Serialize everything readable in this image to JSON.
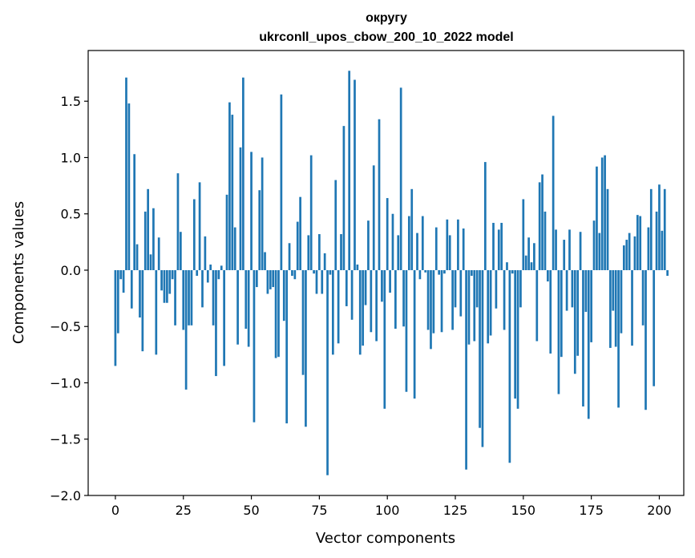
{
  "chart_data": {
    "type": "bar",
    "title_line1": "округу",
    "title_line2": "ukrconll_upos_cbow_200_10_2022 model",
    "xlabel": "Vector components",
    "ylabel": "Components values",
    "xlim": [
      -10,
      209
    ],
    "ylim": [
      -2.0,
      1.95
    ],
    "x_ticks": [
      0,
      25,
      50,
      75,
      100,
      125,
      150,
      175,
      200
    ],
    "x_tick_labels": [
      "0",
      "25",
      "50",
      "75",
      "100",
      "125",
      "150",
      "175",
      "200"
    ],
    "y_ticks": [
      -2.0,
      -1.5,
      -1.0,
      -0.5,
      0.0,
      0.5,
      1.0,
      1.5
    ],
    "y_tick_labels": [
      "−2.0",
      "−1.5",
      "−1.0",
      "−0.5",
      "0.0",
      "0.5",
      "1.0",
      "1.5"
    ],
    "bar_color": "#1f77b4",
    "grid": false,
    "values": [
      -0.85,
      -0.56,
      -0.08,
      -0.2,
      1.71,
      1.48,
      -0.34,
      1.03,
      0.23,
      -0.42,
      -0.72,
      0.52,
      0.72,
      0.14,
      0.55,
      -0.75,
      0.29,
      -0.18,
      -0.29,
      -0.29,
      -0.21,
      -0.08,
      -0.49,
      0.86,
      0.34,
      -0.53,
      -1.06,
      -0.49,
      -0.49,
      0.63,
      -0.05,
      0.78,
      -0.33,
      0.3,
      -0.11,
      0.05,
      -0.49,
      -0.94,
      -0.08,
      0.04,
      -0.85,
      0.67,
      1.49,
      1.38,
      0.38,
      -0.66,
      1.09,
      1.71,
      -0.52,
      -0.68,
      1.05,
      -1.35,
      -0.15,
      0.71,
      1.0,
      0.16,
      -0.21,
      -0.17,
      -0.15,
      -0.78,
      -0.77,
      1.56,
      -0.45,
      -1.36,
      0.24,
      -0.05,
      -0.08,
      0.43,
      0.65,
      -0.93,
      -1.39,
      0.31,
      1.02,
      -0.03,
      -0.21,
      0.32,
      -0.21,
      0.15,
      -1.82,
      -0.04,
      -0.75,
      0.8,
      -0.65,
      0.32,
      1.28,
      -0.32,
      1.77,
      -0.44,
      1.69,
      0.05,
      -0.75,
      -0.67,
      -0.31,
      0.44,
      -0.55,
      0.93,
      -0.63,
      1.34,
      -0.28,
      -1.23,
      0.64,
      -0.2,
      0.5,
      -0.52,
      0.31,
      1.62,
      -0.5,
      -1.08,
      0.48,
      0.72,
      -1.14,
      0.33,
      -0.08,
      0.48,
      -0.02,
      -0.53,
      -0.7,
      -0.56,
      0.38,
      -0.04,
      -0.55,
      -0.03,
      0.45,
      0.31,
      -0.53,
      -0.33,
      0.45,
      -0.41,
      0.37,
      -1.77,
      -0.66,
      -0.05,
      -0.63,
      -0.33,
      -1.4,
      -1.57,
      0.96,
      -0.65,
      -0.58,
      0.42,
      -0.34,
      0.36,
      0.42,
      -0.53,
      0.07,
      -1.71,
      -0.03,
      -1.14,
      -1.23,
      -0.33,
      0.63,
      0.13,
      0.29,
      0.07,
      0.24,
      -0.63,
      0.78,
      0.85,
      0.52,
      -0.1,
      -0.74,
      1.37,
      0.36,
      -1.1,
      -0.77,
      0.27,
      -0.36,
      0.36,
      -0.33,
      -0.92,
      -0.76,
      0.34,
      -1.21,
      -0.37,
      -1.32,
      -0.64,
      0.44,
      0.92,
      0.33,
      1.0,
      1.02,
      0.72,
      -0.69,
      -0.36,
      -0.68,
      -1.22,
      -0.56,
      0.22,
      0.27,
      0.33,
      -0.67,
      0.3,
      0.49,
      0.48,
      -0.49,
      -1.24,
      0.38,
      0.72,
      -1.03,
      0.52,
      0.76,
      0.35,
      0.72,
      -0.05
    ]
  }
}
